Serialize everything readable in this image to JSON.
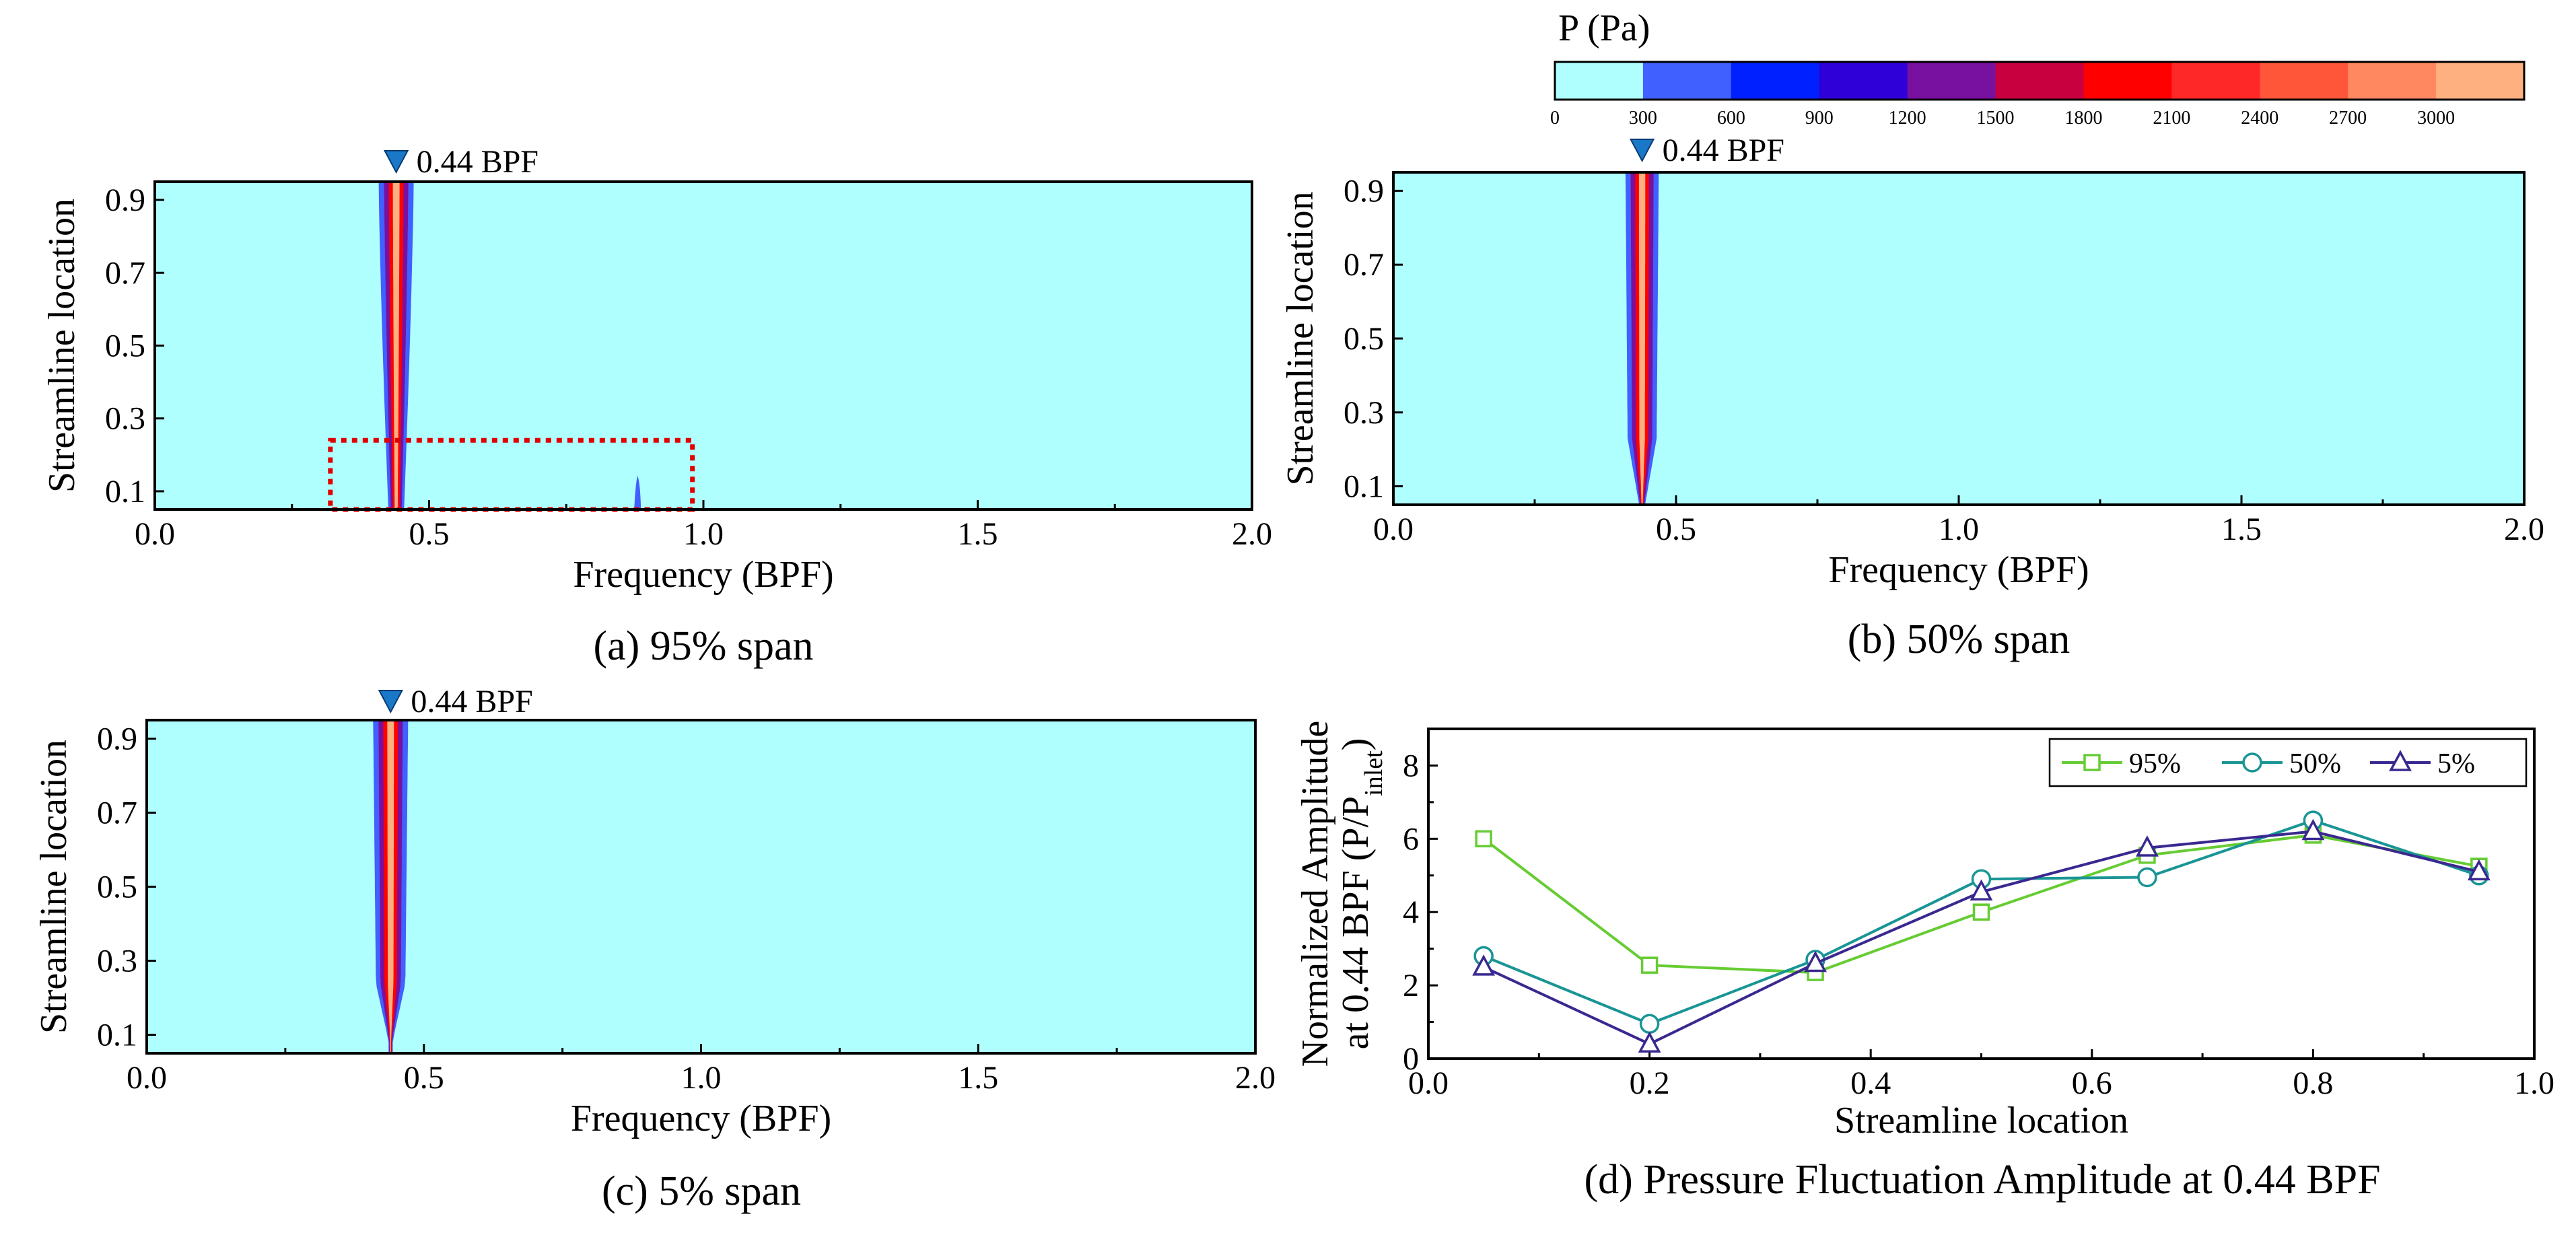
{
  "colorbar": {
    "title": "P (Pa)",
    "ticks": [
      "0",
      "300",
      "600",
      "900",
      "1200",
      "1500",
      "1800",
      "2100",
      "2400",
      "2700",
      "3000"
    ],
    "colors": [
      "#b0ffff",
      "#4060ff",
      "#0020ff",
      "#3000d8",
      "#7810a0",
      "#c80040",
      "#ff0000",
      "#ff2828",
      "#ff5538",
      "#ff8860",
      "#ffb080"
    ]
  },
  "colors": {
    "background": "#b0ffff",
    "peak_blue": "#4060ff",
    "peak_purple": "#7810a0",
    "peak_red": "#ff0000",
    "peak_salmon": "#ffb080",
    "s95": "#66cc33",
    "s50": "#1a9595",
    "s5": "#3a2890",
    "highlight_box": "#e00000"
  },
  "chart_data": [
    {
      "type": "heatmap",
      "panel": "a",
      "caption": "(a) 95% span",
      "xlabel": "Frequency (BPF)",
      "ylabel": "Streamline location",
      "xlim": [
        0.0,
        2.0
      ],
      "ylim": [
        0.05,
        0.95
      ],
      "xticks": [
        "0.0",
        "0.5",
        "1.0",
        "1.5",
        "2.0"
      ],
      "yticks": [
        "0.1",
        "0.3",
        "0.5",
        "0.7",
        "0.9"
      ],
      "marker_label": "0.44 BPF",
      "marker_freq": 0.44,
      "peak_freq": 0.44,
      "secondary_peak_freq": 0.88,
      "highlight_box": {
        "x": [
          0.32,
          0.98
        ],
        "y": [
          0.05,
          0.24
        ]
      }
    },
    {
      "type": "heatmap",
      "panel": "b",
      "caption": "(b) 50% span",
      "xlabel": "Frequency (BPF)",
      "ylabel": "Streamline location",
      "xlim": [
        0.0,
        2.0
      ],
      "ylim": [
        0.05,
        0.95
      ],
      "xticks": [
        "0.0",
        "0.5",
        "1.0",
        "1.5",
        "2.0"
      ],
      "yticks": [
        "0.1",
        "0.3",
        "0.5",
        "0.7",
        "0.9"
      ],
      "marker_label": "0.44 BPF",
      "marker_freq": 0.44,
      "peak_freq": 0.44
    },
    {
      "type": "heatmap",
      "panel": "c",
      "caption": "(c) 5% span",
      "xlabel": "Frequency (BPF)",
      "ylabel": "Streamline location",
      "xlim": [
        0.0,
        2.0
      ],
      "ylim": [
        0.05,
        0.95
      ],
      "xticks": [
        "0.0",
        "0.5",
        "1.0",
        "1.5",
        "2.0"
      ],
      "yticks": [
        "0.1",
        "0.3",
        "0.5",
        "0.7",
        "0.9"
      ],
      "marker_label": "0.44 BPF",
      "marker_freq": 0.44,
      "peak_freq": 0.44
    },
    {
      "type": "line",
      "panel": "d",
      "caption": "(d) Pressure Fluctuation Amplitude at 0.44 BPF",
      "xlabel": "Streamline location",
      "ylabel_line1": "Normalized Amplitude",
      "ylabel_line2": "at 0.44 BPF (P/P",
      "ylabel_sub": "inlet",
      "ylabel_close": ")",
      "xlim": [
        0.0,
        1.0
      ],
      "ylim": [
        0,
        9
      ],
      "xticks": [
        "0.0",
        "0.2",
        "0.4",
        "0.6",
        "0.8",
        "1.0"
      ],
      "yticks": [
        "0",
        "2",
        "4",
        "6",
        "8"
      ],
      "x": [
        0.05,
        0.2,
        0.35,
        0.5,
        0.65,
        0.8,
        0.95
      ],
      "series": [
        {
          "name": "95%",
          "marker": "square",
          "values": [
            6.0,
            2.55,
            2.35,
            4.0,
            5.55,
            6.1,
            5.25
          ]
        },
        {
          "name": "50%",
          "marker": "circle",
          "values": [
            2.8,
            0.95,
            2.7,
            4.9,
            4.95,
            6.5,
            5.0
          ]
        },
        {
          "name": "5%",
          "marker": "triangle",
          "values": [
            2.5,
            0.4,
            2.6,
            4.55,
            5.75,
            6.2,
            5.1
          ]
        }
      ],
      "legend": "top-right"
    }
  ]
}
